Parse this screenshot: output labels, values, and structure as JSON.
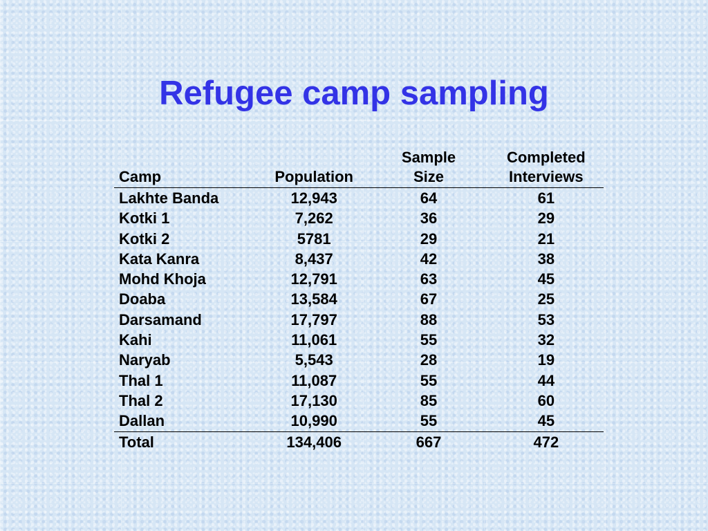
{
  "slide": {
    "title": "Refugee camp sampling"
  },
  "table": {
    "headers": {
      "camp": "Camp",
      "population": "Population",
      "sample_line1": "Sample",
      "sample_line2": "Size",
      "completed_line1": "Completed",
      "completed_line2": "Interviews"
    },
    "rows": [
      {
        "camp": "Lakhte Banda",
        "population": "12,943",
        "sample": "64",
        "completed": "61"
      },
      {
        "camp": "Kotki 1",
        "population": "7,262",
        "sample": "36",
        "completed": "29"
      },
      {
        "camp": "Kotki 2",
        "population": "5781",
        "sample": "29",
        "completed": "21"
      },
      {
        "camp": "Kata Kanra",
        "population": "8,437",
        "sample": "42",
        "completed": "38"
      },
      {
        "camp": "Mohd Khoja",
        "population": "12,791",
        "sample": "63",
        "completed": "45"
      },
      {
        "camp": "Doaba",
        "population": "13,584",
        "sample": "67",
        "completed": "25"
      },
      {
        "camp": "Darsamand",
        "population": "17,797",
        "sample": "88",
        "completed": "53"
      },
      {
        "camp": "Kahi",
        "population": "11,061",
        "sample": "55",
        "completed": "32"
      },
      {
        "camp": "Naryab",
        "population": "5,543",
        "sample": "28",
        "completed": "19"
      },
      {
        "camp": "Thal 1",
        "population": "11,087",
        "sample": "55",
        "completed": "44"
      },
      {
        "camp": "Thal 2",
        "population": "17,130",
        "sample": "85",
        "completed": "60"
      },
      {
        "camp": "Dallan",
        "population": "10,990",
        "sample": "55",
        "completed": "45"
      }
    ],
    "total": {
      "camp": "Total",
      "population": "134,406",
      "sample": "667",
      "completed": "472"
    }
  },
  "colors": {
    "title": "#3333e6",
    "background": "#d6e6f5",
    "text": "#000000"
  }
}
